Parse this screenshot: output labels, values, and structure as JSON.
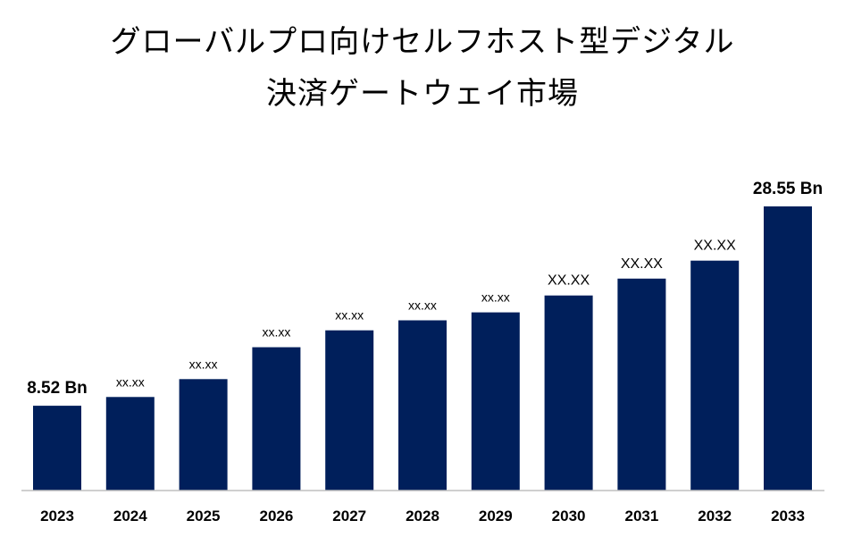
{
  "title_line1": "グローバルプロ向けセルフホスト型デジタル",
  "title_line2": "決済ゲートウェイ市場",
  "chart_data": {
    "type": "bar",
    "title": "グローバルプロ向けセルフホスト型デジタル決済ゲートウェイ市場",
    "categories": [
      "2023",
      "2024",
      "2025",
      "2026",
      "2027",
      "2028",
      "2029",
      "2030",
      "2031",
      "2032",
      "2033"
    ],
    "values": [
      8.52,
      9.4,
      11.2,
      14.4,
      16.1,
      17.1,
      17.9,
      19.6,
      21.3,
      23.1,
      28.55
    ],
    "labels": [
      "8.52 Bn",
      "xx.xx",
      "xx.xx",
      "xx.xx",
      "xx.xx",
      "xx.xx",
      "xx.xx",
      "XX.XX",
      "XX.XX",
      "XX.XX",
      "28.55 Bn"
    ],
    "xlabel": "",
    "ylabel": "",
    "ylim": [
      0,
      30
    ],
    "grid": false,
    "bar_color": "#001f5b"
  }
}
